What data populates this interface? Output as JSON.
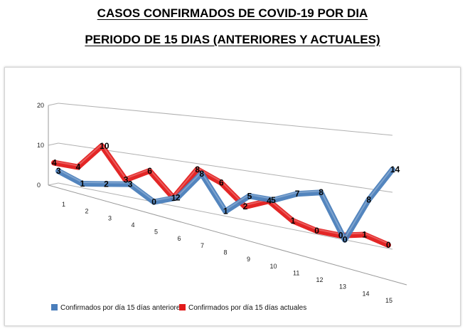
{
  "chart_data": {
    "type": "line",
    "title": "CASOS CONFIRMADOS DE COVID-19 POR DIA",
    "subtitle": "PERIODO DE 15 DIAS (ANTERIORES Y ACTUALES)",
    "categories": [
      "1",
      "2",
      "3",
      "4",
      "5",
      "6",
      "7",
      "8",
      "9",
      "10",
      "11",
      "12",
      "13",
      "14",
      "15"
    ],
    "ylim": [
      0,
      20
    ],
    "yticks": [
      "0",
      "10",
      "20"
    ],
    "grid": true,
    "legend_position": "bottom",
    "series": [
      {
        "name": "Confirmados por día 15 días anteriores",
        "color": "#4a7ebb",
        "values": [
          3,
          1,
          2,
          3,
          0,
          2,
          8,
          1,
          5,
          5,
          7,
          8,
          0,
          8,
          14
        ]
      },
      {
        "name": "Confirmados por día 15 días actuales",
        "color": "#e21a1a",
        "values": [
          4,
          4,
          10,
          3,
          6,
          1,
          8,
          6,
          2,
          4,
          1,
          0,
          0,
          1,
          0
        ]
      }
    ]
  }
}
